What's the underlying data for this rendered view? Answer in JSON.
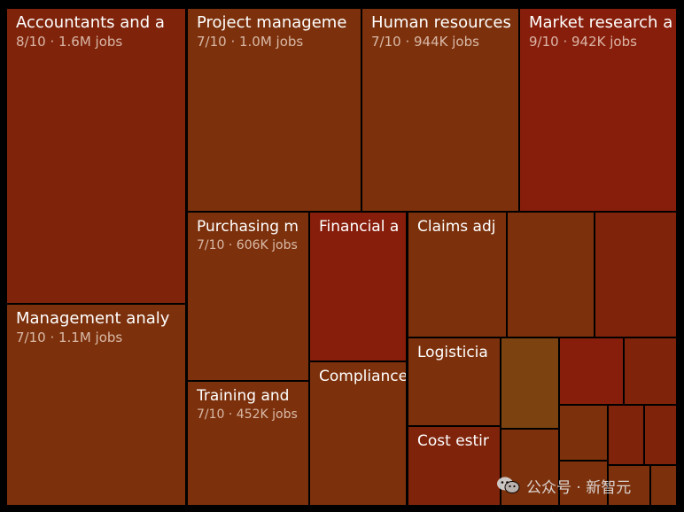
{
  "chart_data": {
    "type": "treemap",
    "colors": {
      "score_9": "#871e0b",
      "score_8": "#7f240b",
      "score_7": "#7c310c",
      "light": "#7c4310"
    },
    "cells": [
      {
        "name": "Accountants and a",
        "stats": "8/10 · 1.6M jobs",
        "score": 8
      },
      {
        "name": "Project manageme",
        "stats": "7/10 · 1.0M jobs",
        "score": 7
      },
      {
        "name": "Human resources",
        "stats": "7/10 · 944K jobs",
        "score": 7
      },
      {
        "name": "Market research a",
        "stats": "9/10 · 942K jobs",
        "score": 9
      },
      {
        "name": "Management analy",
        "stats": "7/10 · 1.1M jobs",
        "score": 7
      },
      {
        "name": "Purchasing m",
        "stats": "7/10 · 606K jobs",
        "score": 7
      },
      {
        "name": "Training and",
        "stats": "7/10 · 452K jobs",
        "score": 7
      },
      {
        "name": "Financial a",
        "stats": "",
        "score": 9
      },
      {
        "name": "Compliance",
        "stats": "",
        "score": 7
      },
      {
        "name": "Claims adj",
        "stats": "",
        "score": 7
      },
      {
        "name": "Logisticia",
        "stats": "",
        "score": 7
      },
      {
        "name": "Cost estir",
        "stats": "",
        "score": 8
      },
      {
        "name": "",
        "stats": "",
        "score": 7
      },
      {
        "name": "",
        "stats": "",
        "score": 8
      },
      {
        "name": "",
        "stats": "",
        "score": 6
      },
      {
        "name": "",
        "stats": "",
        "score": 9
      },
      {
        "name": "",
        "stats": "",
        "score": 8
      },
      {
        "name": "",
        "stats": "",
        "score": 7
      },
      {
        "name": "",
        "stats": "",
        "score": 7
      },
      {
        "name": "",
        "stats": "",
        "score": 8
      },
      {
        "name": "",
        "stats": "",
        "score": 8
      },
      {
        "name": "",
        "stats": "",
        "score": 7
      },
      {
        "name": "",
        "stats": "",
        "score": 7
      },
      {
        "name": "",
        "stats": "",
        "score": 7
      }
    ]
  },
  "watermark": {
    "text": "公众号 · 新智元",
    "icon": "wechat-icon"
  }
}
